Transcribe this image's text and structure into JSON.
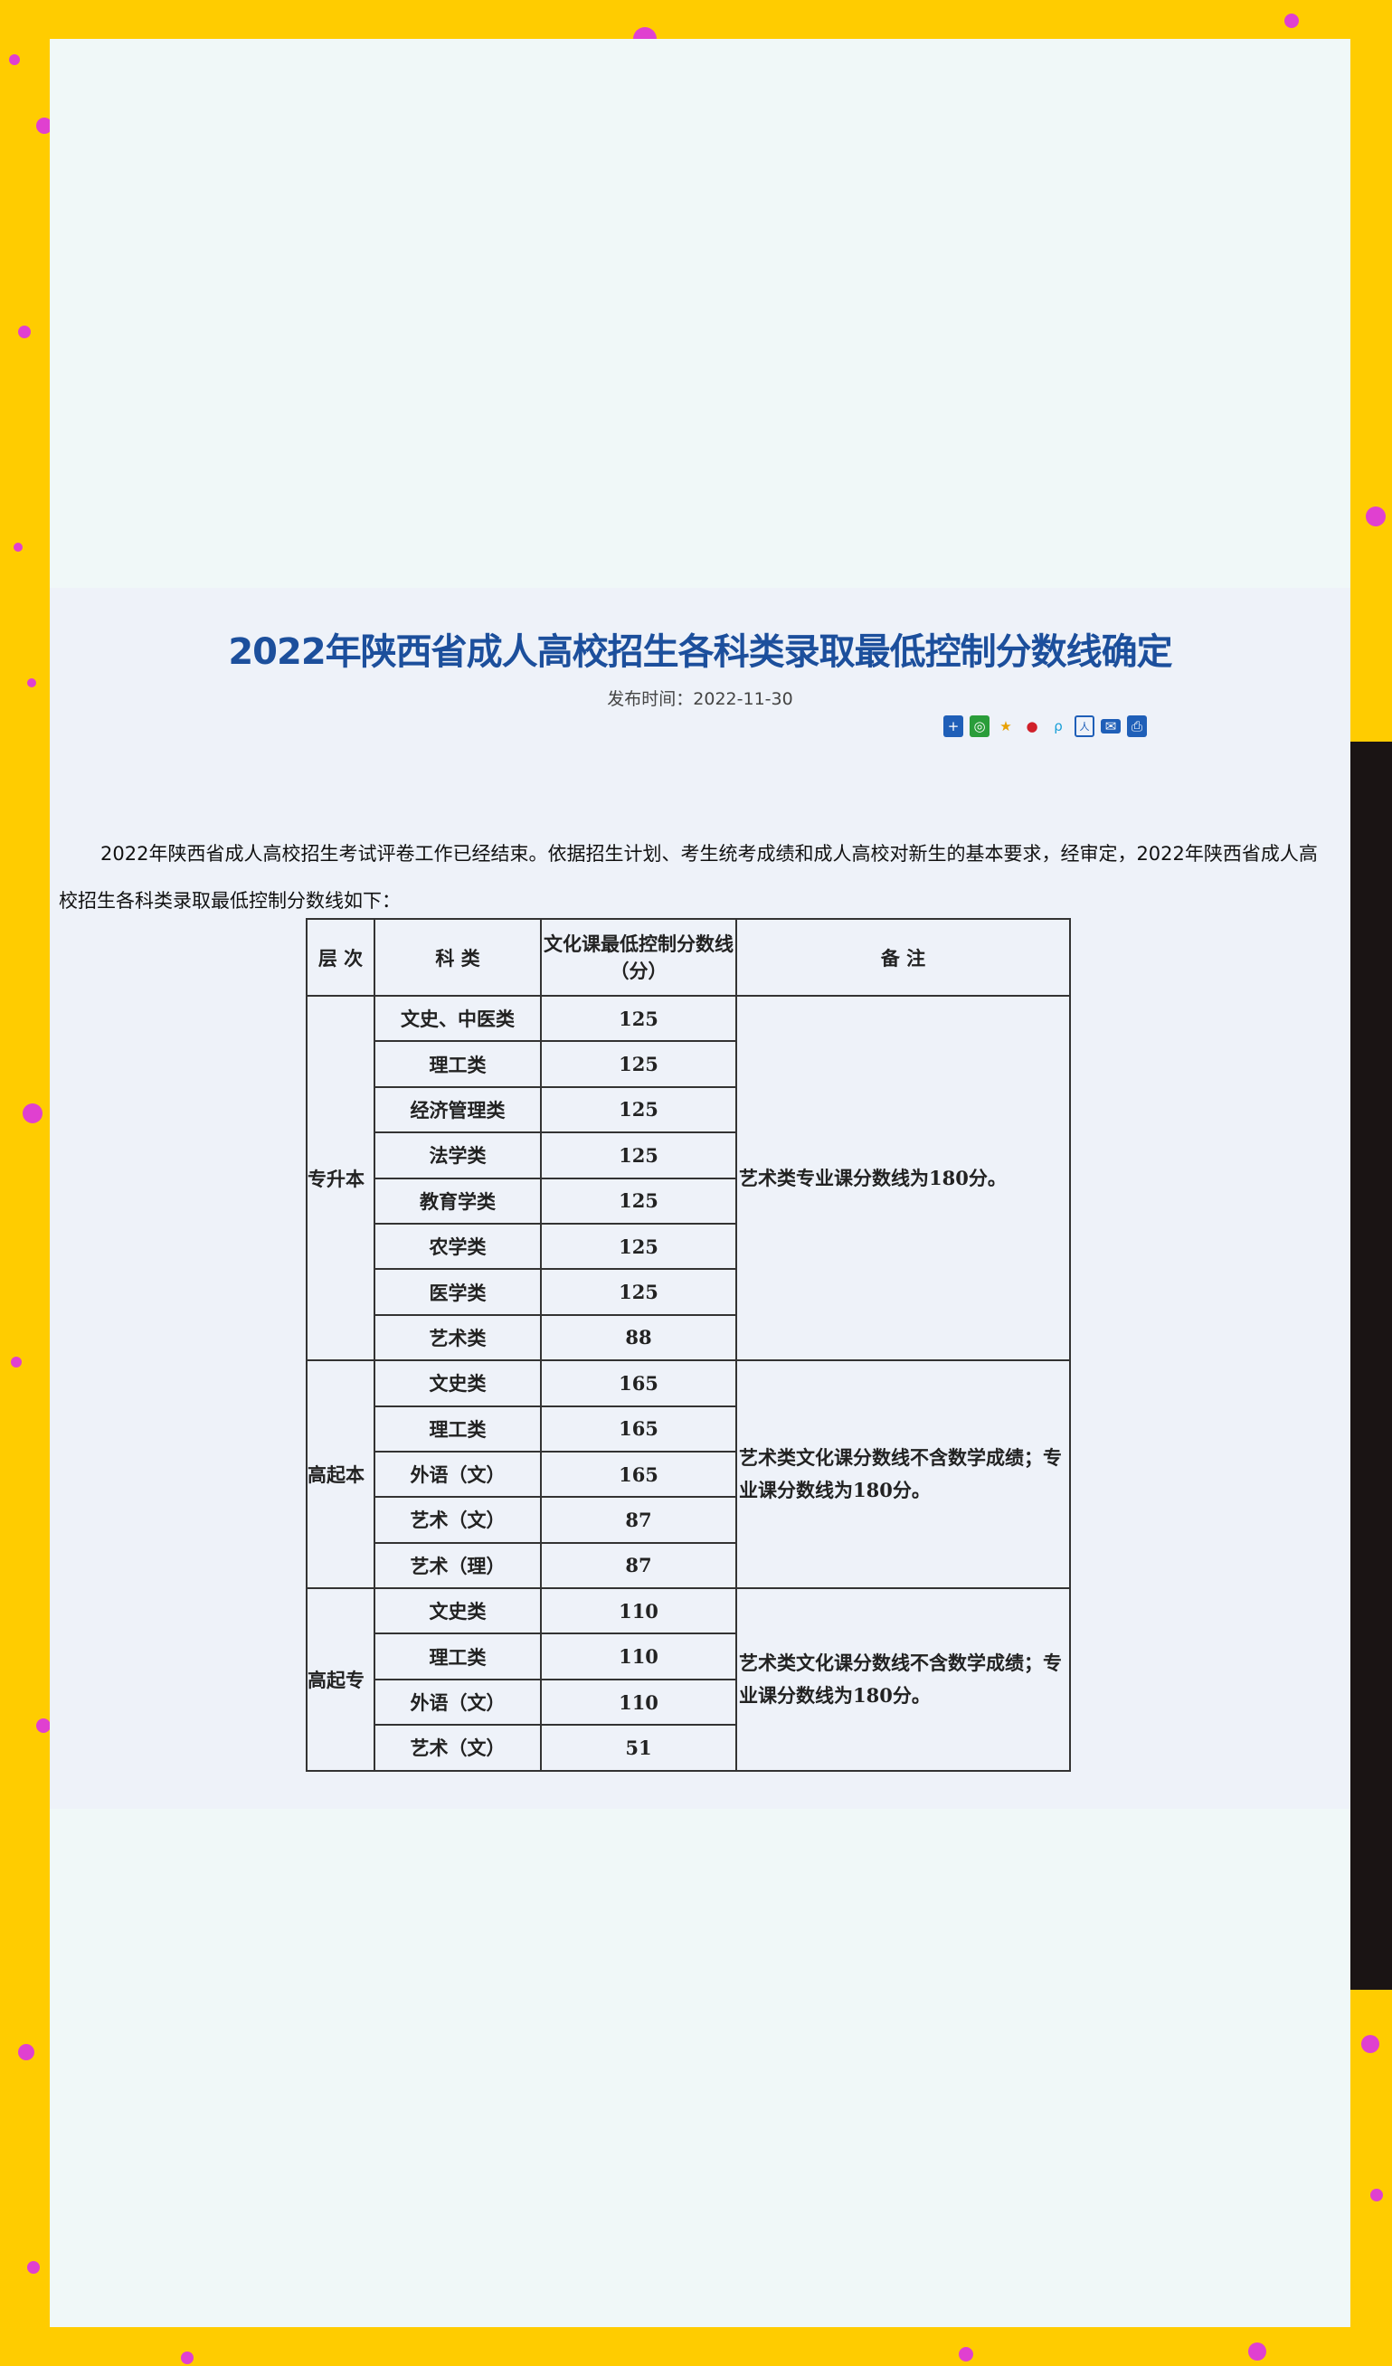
{
  "colors": {
    "frame": "#ffcc00",
    "dots": "#e040d0",
    "title": "#1c4f9c"
  },
  "article": {
    "title": "2022年陕西省成人高校招生各科类录取最低控制分数线确定",
    "date": "发布时间：2022-11-30",
    "share_icons": [
      "plus-share-icon",
      "wechat-icon",
      "favorite-star-icon",
      "weibo-icon",
      "qzone-icon",
      "renren-icon",
      "email-icon",
      "print-icon"
    ],
    "paragraph": "2022年陕西省成人高校招生考试评卷工作已经结束。依据招生计划、考生统考成绩和成人高校对新生的基本要求，经审定，2022年陕西省成人高校招生各科类录取最低控制分数线如下："
  },
  "table": {
    "headers": [
      "层 次",
      "科 类",
      "文化课最低控制分数线（分）",
      "备 注"
    ],
    "groups": [
      {
        "level": "专升本",
        "note": "艺术类专业课分数线为180分。",
        "rows": [
          [
            "文史、中医类",
            "125"
          ],
          [
            "理工类",
            "125"
          ],
          [
            "经济管理类",
            "125"
          ],
          [
            "法学类",
            "125"
          ],
          [
            "教育学类",
            "125"
          ],
          [
            "农学类",
            "125"
          ],
          [
            "医学类",
            "125"
          ],
          [
            "艺术类",
            "88"
          ]
        ]
      },
      {
        "level": "高起本",
        "note": "艺术类文化课分数线不含数学成绩；专业课分数线为180分。",
        "rows": [
          [
            "文史类",
            "165"
          ],
          [
            "理工类",
            "165"
          ],
          [
            "外语（文）",
            "165"
          ],
          [
            "艺术（文）",
            "87"
          ],
          [
            "艺术（理）",
            "87"
          ]
        ]
      },
      {
        "level": "高起专",
        "note": "艺术类文化课分数线不含数学成绩；专业课分数线为180分。",
        "rows": [
          [
            "文史类",
            "110"
          ],
          [
            "理工类",
            "110"
          ],
          [
            "外语（文）",
            "110"
          ],
          [
            "艺术（文）",
            "51"
          ]
        ]
      }
    ]
  }
}
